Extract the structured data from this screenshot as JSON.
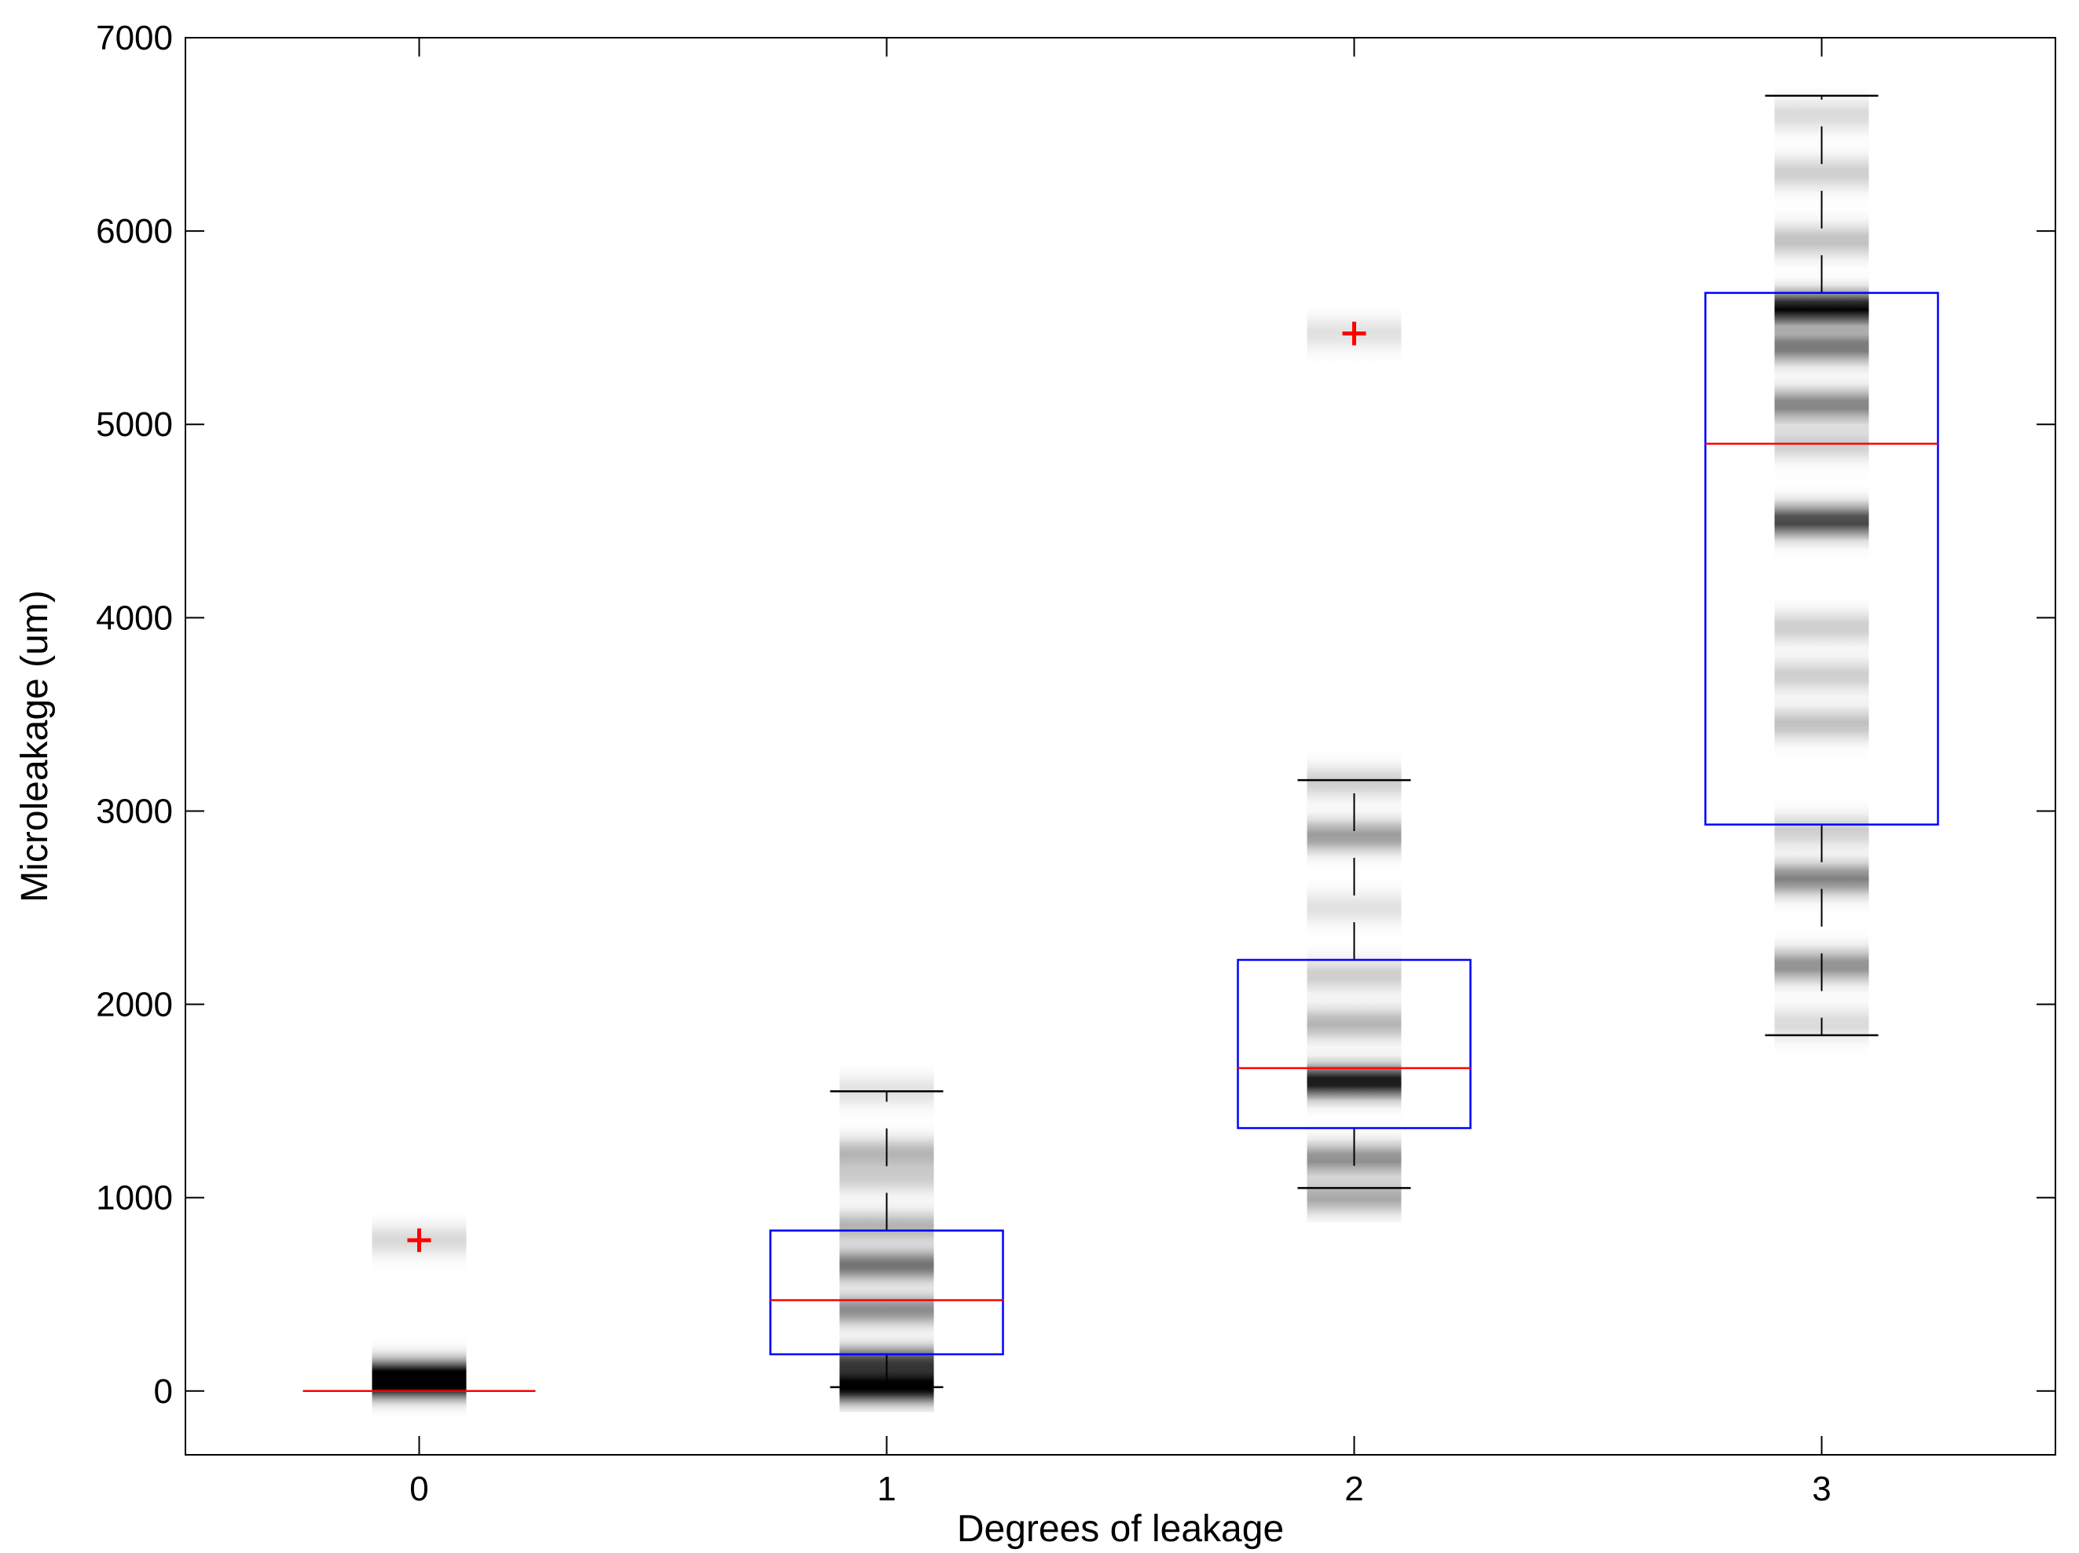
{
  "chart_data": {
    "type": "boxplot",
    "title": "",
    "xlabel": "Degrees of leakage",
    "ylabel": "Microleakage (um)",
    "categories": [
      "0",
      "1",
      "2",
      "3"
    ],
    "x_ticks": [
      "0",
      "1",
      "2",
      "3"
    ],
    "xlim": [
      -0.5,
      3.5
    ],
    "ylim": [
      -330,
      7000
    ],
    "y_ticks": [
      {
        "value": 0,
        "label": "0"
      },
      {
        "value": 1000,
        "label": "1000"
      },
      {
        "value": 2000,
        "label": "2000"
      },
      {
        "value": 3000,
        "label": "3000"
      },
      {
        "value": 4000,
        "label": "4000"
      },
      {
        "value": 5000,
        "label": "5000"
      },
      {
        "value": 6000,
        "label": "6000"
      },
      {
        "value": 7000,
        "label": "7000"
      }
    ],
    "boxes": [
      {
        "category": "0",
        "whisker_low": 0,
        "q1": 0,
        "median": 0,
        "q3": 0,
        "whisker_high": 0,
        "outliers": [
          780
        ],
        "density": [
          {
            "value": 40,
            "intensity": 0.95
          },
          {
            "value": 100,
            "intensity": 0.5
          },
          {
            "value": 780,
            "intensity": 0.15
          }
        ]
      },
      {
        "category": "1",
        "whisker_low": 20,
        "q1": 190,
        "median": 470,
        "q3": 830,
        "whisker_high": 1550,
        "outliers": [],
        "density": [
          {
            "value": 20,
            "intensity": 1.0
          },
          {
            "value": 150,
            "intensity": 0.7
          },
          {
            "value": 420,
            "intensity": 0.45
          },
          {
            "value": 650,
            "intensity": 0.55
          },
          {
            "value": 850,
            "intensity": 0.3
          },
          {
            "value": 1100,
            "intensity": 0.18
          },
          {
            "value": 1230,
            "intensity": 0.28
          },
          {
            "value": 1550,
            "intensity": 0.12
          }
        ]
      },
      {
        "category": "2",
        "whisker_low": 1050,
        "q1": 1360,
        "median": 1670,
        "q3": 2230,
        "whisker_high": 3160,
        "outliers": [
          5470
        ],
        "density": [
          {
            "value": 1000,
            "intensity": 0.35
          },
          {
            "value": 1200,
            "intensity": 0.45
          },
          {
            "value": 1600,
            "intensity": 0.95
          },
          {
            "value": 1900,
            "intensity": 0.3
          },
          {
            "value": 2150,
            "intensity": 0.2
          },
          {
            "value": 2500,
            "intensity": 0.12
          },
          {
            "value": 2870,
            "intensity": 0.4
          },
          {
            "value": 3150,
            "intensity": 0.2
          },
          {
            "value": 5470,
            "intensity": 0.12
          }
        ]
      },
      {
        "category": "3",
        "whisker_low": 1840,
        "q1": 2930,
        "median": 4900,
        "q3": 5680,
        "whisker_high": 6700,
        "outliers": [],
        "density": [
          {
            "value": 1900,
            "intensity": 0.15
          },
          {
            "value": 2200,
            "intensity": 0.45
          },
          {
            "value": 2650,
            "intensity": 0.5
          },
          {
            "value": 2900,
            "intensity": 0.2
          },
          {
            "value": 3450,
            "intensity": 0.25
          },
          {
            "value": 3700,
            "intensity": 0.2
          },
          {
            "value": 3950,
            "intensity": 0.2
          },
          {
            "value": 4500,
            "intensity": 0.75
          },
          {
            "value": 4900,
            "intensity": 0.2
          },
          {
            "value": 5100,
            "intensity": 0.5
          },
          {
            "value": 5400,
            "intensity": 0.55
          },
          {
            "value": 5600,
            "intensity": 1.0
          },
          {
            "value": 5950,
            "intensity": 0.25
          },
          {
            "value": 6300,
            "intensity": 0.2
          },
          {
            "value": 6600,
            "intensity": 0.15
          }
        ]
      }
    ],
    "colors": {
      "box": "#0000ff",
      "median": "#ff0000",
      "outlier": "#ff0000",
      "whisker": "#000000",
      "axis": "#000000"
    }
  }
}
